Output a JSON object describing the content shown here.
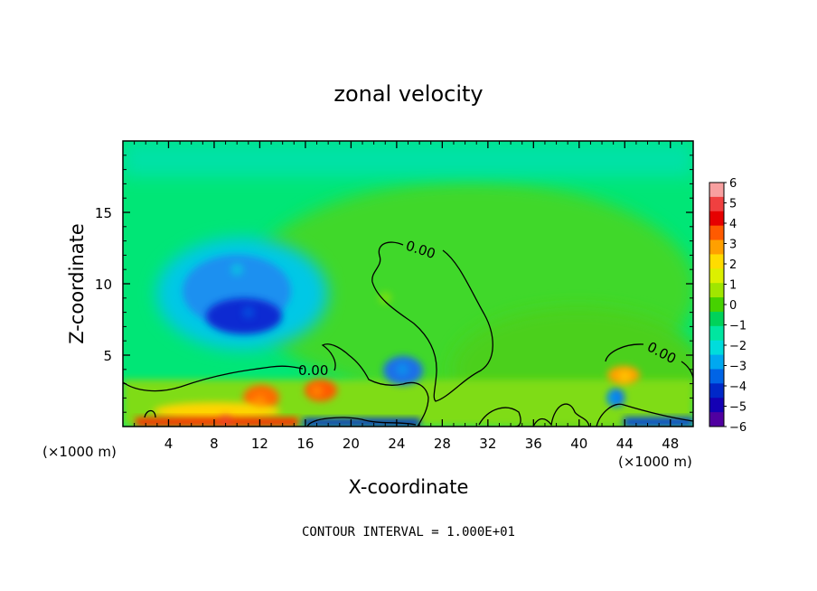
{
  "chart_data": {
    "type": "heatmap",
    "title": "zonal velocity",
    "xlabel": "X-coordinate",
    "ylabel": "Z-coordinate",
    "x_unit_left": "(×1000 m)",
    "x_unit_right": "(×1000 m)",
    "xlim": [
      0,
      50
    ],
    "ylim": [
      0,
      20
    ],
    "x_ticks": [
      4,
      8,
      12,
      16,
      20,
      24,
      28,
      32,
      36,
      40,
      44,
      48
    ],
    "y_ticks": [
      5,
      10,
      15
    ],
    "colorbar": {
      "ticks": [
        6,
        5,
        4,
        3,
        2,
        1,
        0,
        -1,
        -2,
        -3,
        -4,
        -5,
        -6
      ],
      "tick_labels": [
        "6",
        "5",
        "4",
        "3",
        "2",
        "1",
        "0",
        "−1",
        "−2",
        "−3",
        "−4",
        "−5",
        "−6"
      ],
      "colors": [
        "#f8a0a0",
        "#f04040",
        "#e60000",
        "#ff5a00",
        "#ffa000",
        "#ffdc00",
        "#dcf000",
        "#a0e600",
        "#46d200",
        "#00d25a",
        "#00e6a0",
        "#00dcdc",
        "#00a8f0",
        "#0064e6",
        "#0028c8",
        "#1400b4",
        "#5000a0"
      ]
    },
    "contour_label": "0.00",
    "annotation": "CONTOUR INTERVAL = 1.000E+01",
    "features": [
      {
        "x": 11,
        "y": 8,
        "value": -4
      },
      {
        "x": 10,
        "y": 11,
        "value": -2
      },
      {
        "x": 24.5,
        "y": 4,
        "value": -3
      },
      {
        "x": 43,
        "y": 2,
        "value": -3
      },
      {
        "x": 12,
        "y": 1.8,
        "value": 3
      },
      {
        "x": 17,
        "y": 2.5,
        "value": 3
      },
      {
        "x": 9,
        "y": 0.4,
        "value": 5
      },
      {
        "x": 23,
        "y": 9,
        "value": 1
      },
      {
        "x": 44,
        "y": 3.5,
        "value": 2
      }
    ]
  }
}
